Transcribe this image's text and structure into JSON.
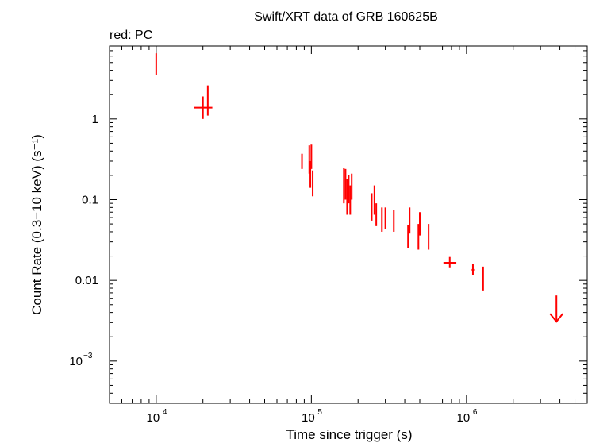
{
  "chart_data": {
    "type": "scatter",
    "title": "Swift/XRT data of GRB 160625B",
    "subtitle": "red: PC",
    "xlabel": "Time since trigger (s)",
    "ylabel": "Count Rate (0.3−10 keV) (s⁻¹)",
    "x_scale": "log",
    "y_scale": "log",
    "xlim": [
      5000,
      6000000
    ],
    "ylim": [
      0.0003,
      8
    ],
    "grid": false,
    "series_color": "#ff0000",
    "x_ticks": [
      {
        "value": 10000,
        "base": "10",
        "exp": "4"
      },
      {
        "value": 100000,
        "base": "10",
        "exp": "5"
      },
      {
        "value": 1000000,
        "base": "10",
        "exp": "6"
      }
    ],
    "y_ticks": [
      {
        "value": 1,
        "label": "1"
      },
      {
        "value": 0.1,
        "label": "0.1"
      },
      {
        "value": 0.01,
        "label": "0.01"
      },
      {
        "value": 0.001,
        "base": "10",
        "exp": "−3"
      }
    ],
    "points": [
      {
        "x": 10000,
        "x_lo": 9950,
        "x_hi": 10050,
        "y": 4.7,
        "y_lo": 3.5,
        "y_hi": 6.5
      },
      {
        "x": 20000,
        "x_lo": 17500,
        "x_hi": 23000,
        "y": 1.38,
        "y_lo": 1.0,
        "y_hi": 1.9
      },
      {
        "x": 21500,
        "x_lo": 21400,
        "x_hi": 21600,
        "y": 1.7,
        "y_lo": 1.1,
        "y_hi": 2.6
      },
      {
        "x": 87000,
        "x_lo": 86500,
        "x_hi": 87500,
        "y": 0.3,
        "y_lo": 0.24,
        "y_hi": 0.37
      },
      {
        "x": 97000,
        "x_lo": 96500,
        "x_hi": 97500,
        "y": 0.33,
        "y_lo": 0.21,
        "y_hi": 0.47
      },
      {
        "x": 98500,
        "x_lo": 98000,
        "x_hi": 99000,
        "y": 0.21,
        "y_lo": 0.14,
        "y_hi": 0.3
      },
      {
        "x": 100000,
        "x_lo": 99500,
        "x_hi": 100500,
        "y": 0.35,
        "y_lo": 0.24,
        "y_hi": 0.48
      },
      {
        "x": 102000,
        "x_lo": 101500,
        "x_hi": 102500,
        "y": 0.16,
        "y_lo": 0.11,
        "y_hi": 0.23
      },
      {
        "x": 162000,
        "x_lo": 161500,
        "x_hi": 162500,
        "y": 0.15,
        "y_lo": 0.09,
        "y_hi": 0.25
      },
      {
        "x": 166000,
        "x_lo": 165500,
        "x_hi": 166500,
        "y": 0.16,
        "y_lo": 0.1,
        "y_hi": 0.24
      },
      {
        "x": 170000,
        "x_lo": 169500,
        "x_hi": 170500,
        "y": 0.11,
        "y_lo": 0.065,
        "y_hi": 0.18
      },
      {
        "x": 174000,
        "x_lo": 173500,
        "x_hi": 174500,
        "y": 0.14,
        "y_lo": 0.09,
        "y_hi": 0.2
      },
      {
        "x": 178000,
        "x_lo": 177500,
        "x_hi": 178500,
        "y": 0.1,
        "y_lo": 0.065,
        "y_hi": 0.15
      },
      {
        "x": 182000,
        "x_lo": 181500,
        "x_hi": 182500,
        "y": 0.15,
        "y_lo": 0.1,
        "y_hi": 0.21
      },
      {
        "x": 245000,
        "x_lo": 244000,
        "x_hi": 246000,
        "y": 0.08,
        "y_lo": 0.055,
        "y_hi": 0.12
      },
      {
        "x": 255000,
        "x_lo": 254000,
        "x_hi": 256000,
        "y": 0.1,
        "y_lo": 0.065,
        "y_hi": 0.15
      },
      {
        "x": 262000,
        "x_lo": 261000,
        "x_hi": 263000,
        "y": 0.065,
        "y_lo": 0.047,
        "y_hi": 0.09
      },
      {
        "x": 285000,
        "x_lo": 284000,
        "x_hi": 286000,
        "y": 0.055,
        "y_lo": 0.04,
        "y_hi": 0.08
      },
      {
        "x": 300000,
        "x_lo": 299000,
        "x_hi": 301000,
        "y": 0.06,
        "y_lo": 0.043,
        "y_hi": 0.08
      },
      {
        "x": 340000,
        "x_lo": 339000,
        "x_hi": 341000,
        "y": 0.055,
        "y_lo": 0.04,
        "y_hi": 0.075
      },
      {
        "x": 420000,
        "x_lo": 419000,
        "x_hi": 421000,
        "y": 0.035,
        "y_lo": 0.025,
        "y_hi": 0.048
      },
      {
        "x": 430000,
        "x_lo": 429000,
        "x_hi": 431000,
        "y": 0.055,
        "y_lo": 0.038,
        "y_hi": 0.08
      },
      {
        "x": 490000,
        "x_lo": 489000,
        "x_hi": 491000,
        "y": 0.035,
        "y_lo": 0.024,
        "y_hi": 0.05
      },
      {
        "x": 500000,
        "x_lo": 499000,
        "x_hi": 501000,
        "y": 0.05,
        "y_lo": 0.036,
        "y_hi": 0.07
      },
      {
        "x": 570000,
        "x_lo": 569000,
        "x_hi": 571000,
        "y": 0.035,
        "y_lo": 0.024,
        "y_hi": 0.05
      },
      {
        "x": 780000,
        "x_lo": 710000,
        "x_hi": 860000,
        "y": 0.0165,
        "y_lo": 0.0145,
        "y_hi": 0.0195
      },
      {
        "x": 1100000,
        "x_lo": 1080000,
        "x_hi": 1120000,
        "y": 0.0135,
        "y_lo": 0.0115,
        "y_hi": 0.016
      },
      {
        "x": 1280000,
        "x_lo": 1270000,
        "x_hi": 1290000,
        "y": 0.0105,
        "y_lo": 0.0075,
        "y_hi": 0.0148
      }
    ],
    "upper_limits": [
      {
        "x": 3800000,
        "y": 0.0065
      }
    ]
  }
}
